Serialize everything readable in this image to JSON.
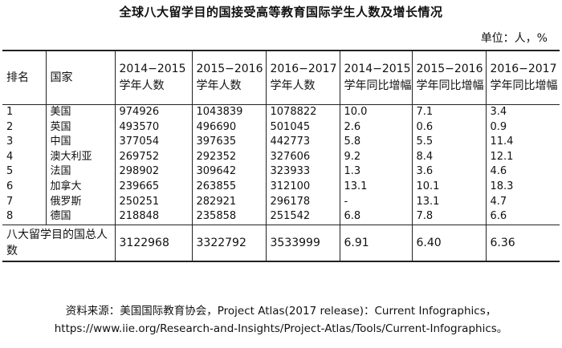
{
  "title": "全球八大留学目的国接受高等教育国际学生人数及增长情况",
  "unit": "单位：人，%",
  "headers": [
    "排名",
    "国家",
    "2014−2015 学年人数",
    "2015−2016 学年人数",
    "2016−2017 学年人数",
    "2014−2015 学年同比增幅",
    "2015−2016 学年同比增幅",
    "2016−2017 学年同比增幅"
  ],
  "rows": [
    [
      "1",
      "美国",
      "974926",
      "1043839",
      "1078822",
      "10.0",
      "7.1",
      "3.4"
    ],
    [
      "2",
      "英国",
      "493570",
      "496690",
      "501045",
      "2.6",
      "0.6",
      "0.9"
    ],
    [
      "3",
      "中国",
      "377054",
      "397635",
      "442773",
      "5.8",
      "5.5",
      "11.4"
    ],
    [
      "4",
      "澳大利亚",
      "269752",
      "292352",
      "327606",
      "9.2",
      "8.4",
      "12.1"
    ],
    [
      "5",
      "法国",
      "298902",
      "309642",
      "323933",
      "1.3",
      "3.6",
      "4.6"
    ],
    [
      "6",
      "加拿大",
      "239665",
      "263855",
      "312100",
      "13.1",
      "10.1",
      "18.3"
    ],
    [
      "7",
      "俄罗斯",
      "250251",
      "282921",
      "296178",
      "-",
      "13.1",
      "4.7"
    ],
    [
      "8",
      "德国",
      "218848",
      "235858",
      "251542",
      "6.8",
      "7.8",
      "6.6"
    ]
  ],
  "total": {
    "label": "八大留学目的国总人数",
    "values": [
      "3122968",
      "3322792",
      "3533999",
      "6.91",
      "6.40",
      "6.36"
    ]
  },
  "source_line1": "资料来源：美国国际教育协会，Project Atlas(2017 release)：Current Infographics，",
  "source_line2": "https://www.iie.org/Research-and-Insights/Project-Atlas/Tools/Current-Infographics。"
}
